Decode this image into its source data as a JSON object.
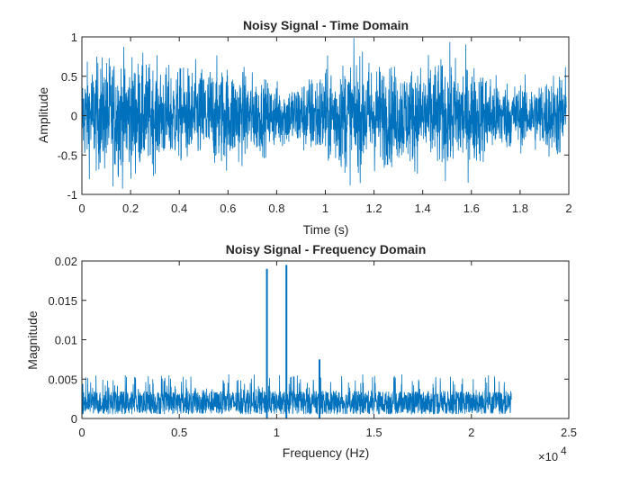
{
  "figure": {
    "background": "#ffffff",
    "axes_color": "#262626",
    "line_color": "#0072BD"
  },
  "chart_data": [
    {
      "type": "line",
      "title": "Noisy Signal - Time Domain",
      "xlabel": "Time (s)",
      "ylabel": "Amplitude",
      "xlim": [
        0,
        2
      ],
      "ylim": [
        -1,
        1
      ],
      "grid": false,
      "xticks": [
        "0",
        "0.2",
        "0.4",
        "0.6",
        "0.8",
        "1",
        "1.2",
        "1.4",
        "1.6",
        "1.8",
        "2"
      ],
      "yticks": [
        "-1",
        "-0.5",
        "0",
        "0.5",
        "1"
      ],
      "series": [
        {
          "x_range": [
            0,
            1.99
          ],
          "description_values": {
            "envelope_typical": [
              -0.6,
              0.6
            ],
            "peak_range": [
              -1,
              1
            ],
            "mean": 0
          }
        }
      ]
    },
    {
      "type": "line",
      "title": "Noisy Signal - Frequency Domain",
      "xlabel": "Frequency (Hz)",
      "ylabel": "Magnitude",
      "xlim": [
        0,
        25000
      ],
      "ylim": [
        0,
        0.02
      ],
      "x_exponent": "4",
      "grid": false,
      "xticks": [
        "0",
        "0.5",
        "1",
        "1.5",
        "2",
        "2.5"
      ],
      "yticks": [
        "0",
        "0.005",
        "0.01",
        "0.015",
        "0.02"
      ],
      "series": [
        {
          "x_range": [
            0,
            22050
          ],
          "noise_floor": 0.0035,
          "peaks": [
            {
              "x": 9500,
              "y": 0.019
            },
            {
              "x": 10500,
              "y": 0.0195
            },
            {
              "x": 12200,
              "y": 0.0075
            }
          ]
        }
      ]
    }
  ]
}
